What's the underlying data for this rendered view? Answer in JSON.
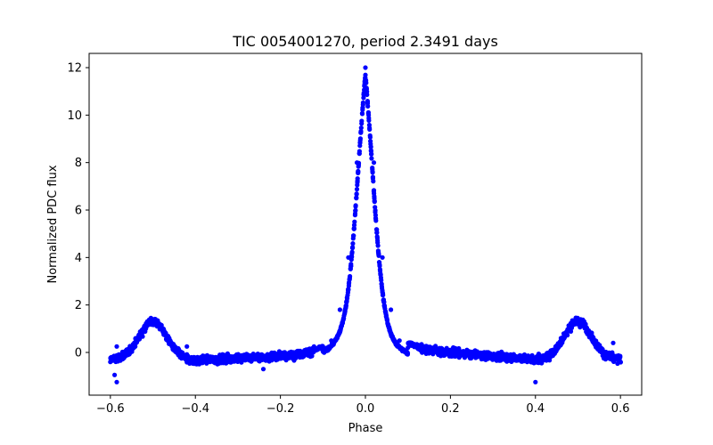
{
  "chart_data": {
    "type": "scatter",
    "title": "TIC 0054001270, period 2.3491 days",
    "xlabel": "Phase",
    "ylabel": "Normalized PDC flux",
    "xlim": [
      -0.65,
      0.65
    ],
    "ylim": [
      -1.8,
      12.6
    ],
    "xticks": [
      -0.6,
      -0.4,
      -0.2,
      0.0,
      0.2,
      0.4,
      0.6
    ],
    "xtick_labels": [
      "−0.6",
      "−0.4",
      "−0.2",
      "0.0",
      "0.2",
      "0.4",
      "0.6"
    ],
    "yticks": [
      0,
      2,
      4,
      6,
      8,
      10,
      12
    ],
    "ytick_labels": [
      "0",
      "2",
      "4",
      "6",
      "8",
      "10",
      "12"
    ],
    "grid": false,
    "series": [
      {
        "name": "phased light curve",
        "color": "#0000ff",
        "marker": "circle",
        "phase_range": [
          -0.6,
          0.6
        ],
        "profile": {
          "description": "folded light curve: narrow primary peak at phase 0, broad secondary bumps at phase ±0.5",
          "primary_peak": {
            "center": 0.0,
            "amplitude": 12.0
          },
          "secondary_peaks": [
            {
              "center": -0.5,
              "amplitude": 1.2
            },
            {
              "center": 0.5,
              "amplitude": 1.2
            }
          ],
          "baseline": -0.3,
          "scatter": 0.25,
          "min_value": -1.3
        },
        "points": [
          [
            -0.6,
            -0.4
          ],
          [
            -0.58,
            -0.3
          ],
          [
            -0.56,
            0.1
          ],
          [
            -0.54,
            0.6
          ],
          [
            -0.52,
            1.0
          ],
          [
            -0.5,
            1.2
          ],
          [
            -0.48,
            1.0
          ],
          [
            -0.46,
            0.5
          ],
          [
            -0.44,
            0.0
          ],
          [
            -0.42,
            -0.3
          ],
          [
            -0.4,
            -0.35
          ],
          [
            -0.3,
            -0.3
          ],
          [
            -0.2,
            -0.25
          ],
          [
            -0.15,
            -0.1
          ],
          [
            -0.1,
            0.1
          ],
          [
            -0.08,
            0.5
          ],
          [
            -0.06,
            1.8
          ],
          [
            -0.04,
            4.0
          ],
          [
            -0.02,
            8.0
          ],
          [
            0.0,
            12.0
          ],
          [
            0.02,
            8.0
          ],
          [
            0.04,
            4.0
          ],
          [
            0.06,
            1.8
          ],
          [
            0.08,
            0.5
          ],
          [
            0.1,
            0.2
          ],
          [
            0.15,
            0.0
          ],
          [
            0.2,
            -0.1
          ],
          [
            0.3,
            -0.25
          ],
          [
            0.4,
            -0.35
          ],
          [
            0.42,
            -0.2
          ],
          [
            0.44,
            0.1
          ],
          [
            0.46,
            0.6
          ],
          [
            0.48,
            1.0
          ],
          [
            0.5,
            1.2
          ],
          [
            0.52,
            1.0
          ],
          [
            0.54,
            0.5
          ],
          [
            0.56,
            0.0
          ],
          [
            0.58,
            -0.3
          ],
          [
            0.6,
            -0.4
          ]
        ]
      }
    ]
  }
}
